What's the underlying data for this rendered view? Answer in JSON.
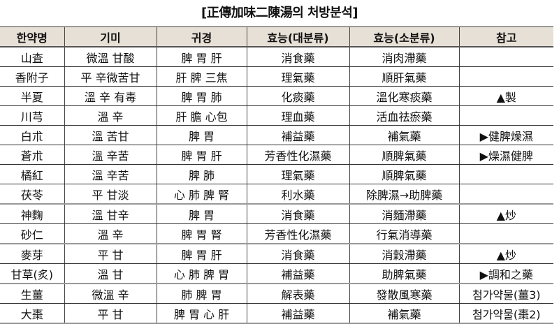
{
  "title": "[正傳加味二陳湯의 처방분석]",
  "columns": [
    "한약명",
    "기미",
    "귀경",
    "효능(대분류)",
    "효능(소분류)",
    "참고"
  ],
  "rows": [
    [
      "山査",
      "微溫 甘酸",
      "脾 胃 肝",
      "消食藥",
      "消肉滯藥",
      ""
    ],
    [
      "香附子",
      "平 辛微苦甘",
      "肝 脾 三焦",
      "理氣藥",
      "順肝氣藥",
      ""
    ],
    [
      "半夏",
      "溫 辛 有毒",
      "脾 胃 肺",
      "化痰藥",
      "溫化寒痰藥",
      "▲製"
    ],
    [
      "川芎",
      "溫 辛",
      "肝 膽 心包",
      "理血藥",
      "活血祛瘀藥",
      ""
    ],
    [
      "白朮",
      "溫 苦甘",
      "脾 胃",
      "補益藥",
      "補氣藥",
      "▶健脾燥濕"
    ],
    [
      "蒼朮",
      "溫 辛苦",
      "脾 胃 肝",
      "芳香性化濕藥",
      "順脾氣藥",
      "▶燥濕健脾"
    ],
    [
      "橘紅",
      "溫 辛苦",
      "脾 肺",
      "理氣藥",
      "順脾氣藥",
      ""
    ],
    [
      "茯苓",
      "平 甘淡",
      "心 肺 脾 腎",
      "利水藥",
      "除脾濕→助脾藥",
      ""
    ],
    [
      "神麴",
      "溫 甘辛",
      "脾 胃",
      "消食藥",
      "消麵滯藥",
      "▲炒"
    ],
    [
      "砂仁",
      "溫 辛",
      "脾 胃 腎",
      "芳香性化濕藥",
      "行氣消導藥",
      ""
    ],
    [
      "麥芽",
      "平 甘",
      "脾 胃 肝",
      "消食藥",
      "消穀滯藥",
      "▲炒"
    ],
    [
      "甘草(炙)",
      "溫 甘",
      "心 肺 脾 胃",
      "補益藥",
      "助脾氣藥",
      "▶調和之藥"
    ],
    [
      "生薑",
      "微溫 辛",
      "肺 脾 胃",
      "解表藥",
      "發散風寒藥",
      "첨가약물(薑3)"
    ],
    [
      "大棗",
      "平 甘",
      "脾 胃 心 肝",
      "補益藥",
      "補氣藥",
      "첨가약물(棗2)"
    ]
  ]
}
